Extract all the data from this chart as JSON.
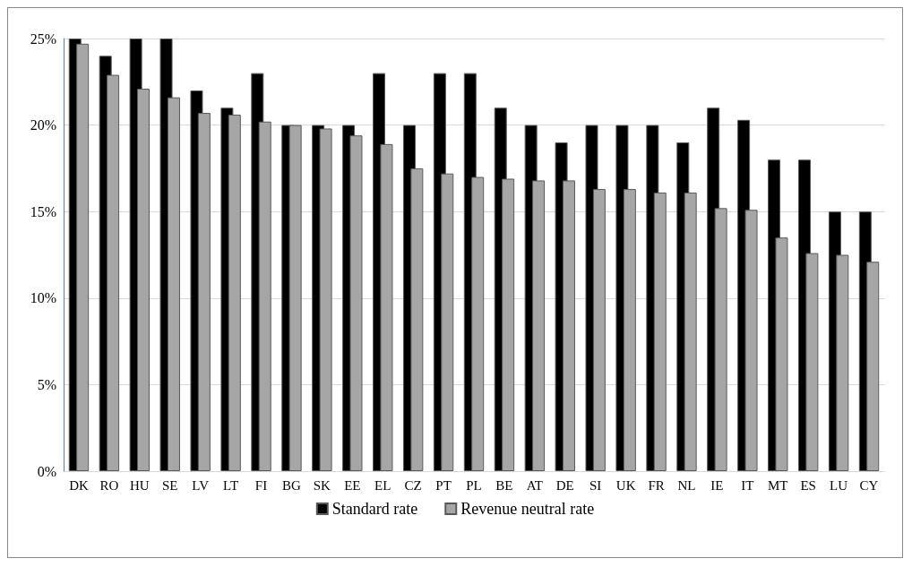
{
  "chart_data": {
    "type": "bar",
    "categories": [
      "DK",
      "RO",
      "HU",
      "SE",
      "LV",
      "LT",
      "FI",
      "BG",
      "SK",
      "EE",
      "EL",
      "CZ",
      "PT",
      "PL",
      "BE",
      "AT",
      "DE",
      "SI",
      "UK",
      "FR",
      "NL",
      "IE",
      "IT",
      "MT",
      "ES",
      "LU",
      "CY"
    ],
    "series": [
      {
        "name": "Standard rate",
        "color": "#000000",
        "values": [
          25,
          24,
          25,
          25,
          22,
          21,
          23,
          20,
          20,
          20,
          23,
          20,
          23,
          23,
          21,
          20,
          19,
          20,
          20,
          20,
          19,
          21,
          20.3,
          18,
          18,
          15,
          15
        ]
      },
      {
        "name": "Revenue neutral rate",
        "color": "#a6a6a6",
        "values": [
          24.7,
          22.9,
          22.1,
          21.6,
          20.7,
          20.6,
          20.2,
          20,
          19.8,
          19.4,
          18.9,
          17.5,
          17.2,
          17.0,
          16.9,
          16.8,
          16.8,
          16.3,
          16.3,
          16.1,
          16.1,
          15.2,
          15.1,
          13.5,
          12.6,
          12.5,
          12.1
        ]
      }
    ],
    "ylim": [
      0,
      25
    ],
    "yticks": [
      {
        "value": 0,
        "label": "0%"
      },
      {
        "value": 5,
        "label": "5%"
      },
      {
        "value": 10,
        "label": "10%"
      },
      {
        "value": 15,
        "label": "15%"
      },
      {
        "value": 20,
        "label": "20%"
      },
      {
        "value": 25,
        "label": "25%"
      }
    ],
    "grid": "y",
    "legend": "bottom"
  }
}
